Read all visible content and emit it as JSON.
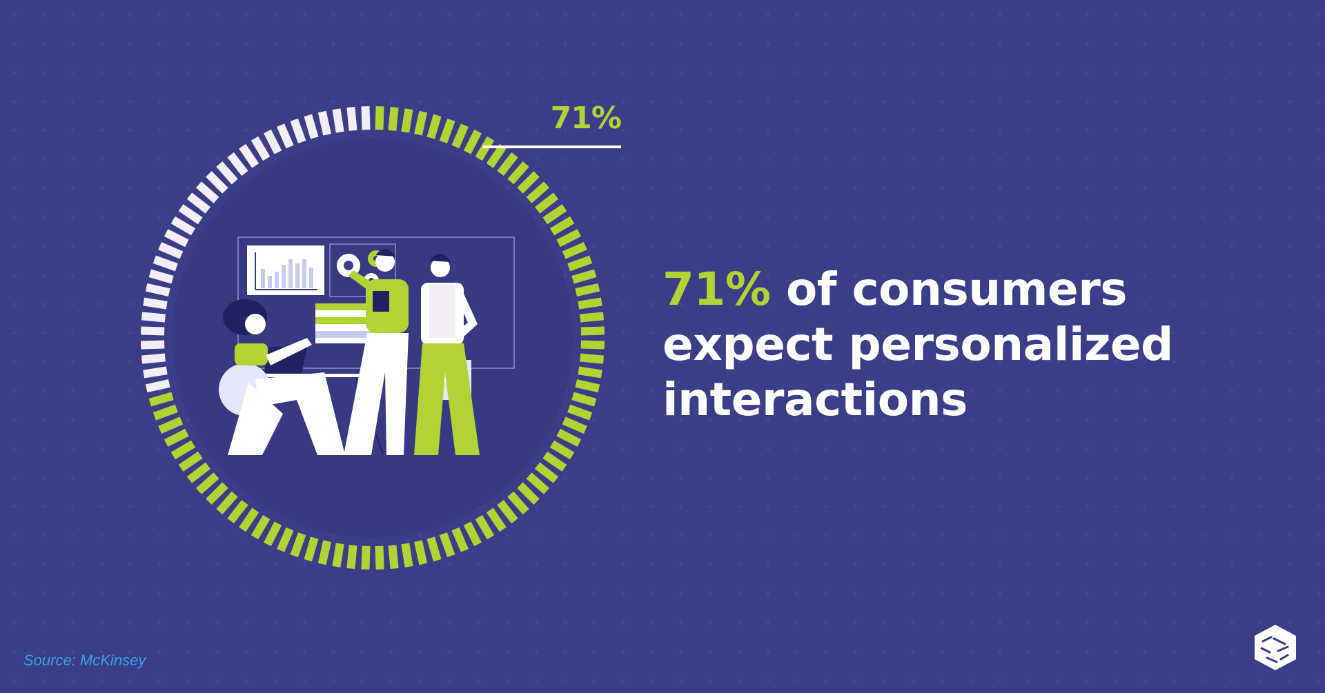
{
  "chart_data": {
    "type": "radial-gauge",
    "value": 71,
    "max": 100,
    "value_label": "71%",
    "colors": {
      "filled": "#b3d335",
      "empty": "#f3eef6",
      "background": "#3a3d87"
    }
  },
  "headline": {
    "accent": "71%",
    "rest": " of consumers expect personalized interactions"
  },
  "source": "Source: McKinsey",
  "colors": {
    "accent": "#b3d335",
    "text": "#ffffff",
    "source": "#3aa0e4",
    "background": "#3a3d87"
  },
  "icons": {
    "logo": "cube-logo-icon",
    "illustration": "team-working-illustration"
  }
}
